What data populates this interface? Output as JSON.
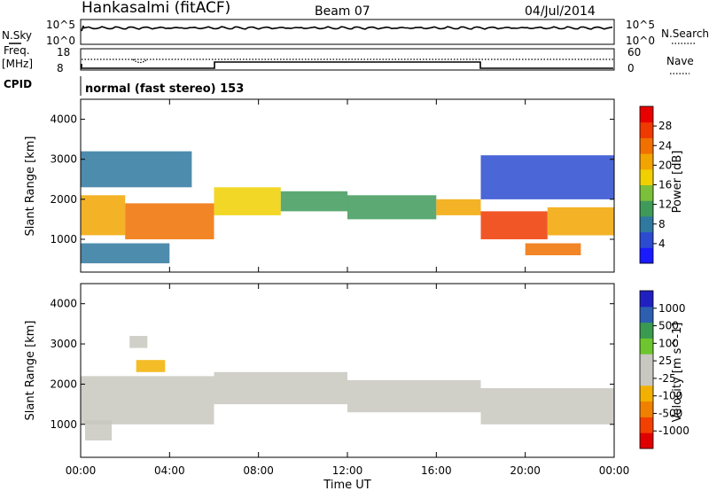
{
  "header": {
    "station": "Hankasalmi (fitACF)",
    "beam": "Beam 07",
    "date": "04/Jul/2014"
  },
  "noise_panel": {
    "left_label": "N.Sky",
    "right_label": "N.Search",
    "left_ticks": [
      "10^5",
      "10^0"
    ],
    "right_ticks": [
      "10^5",
      "10^0"
    ]
  },
  "freq_panel": {
    "left_label": "Freq.",
    "left_unit": "[MHz]",
    "right_label": "Nave",
    "left_ticks": [
      "18",
      "8"
    ],
    "right_ticks": [
      "60",
      "0"
    ]
  },
  "cpid": {
    "label": "CPID",
    "value": "normal (fast stereo) 153"
  },
  "x_axis": {
    "label": "Time UT",
    "ticks": [
      "00:00",
      "04:00",
      "08:00",
      "12:00",
      "16:00",
      "20:00",
      "00:00"
    ]
  },
  "colors": {
    "power_scale": [
      "#1a1aff",
      "#2c4bd0",
      "#2f78a0",
      "#3f9a5a",
      "#7cbf3a",
      "#f0d000",
      "#f2a400",
      "#f07000",
      "#ee3a00",
      "#e80000"
    ],
    "velocity_scale": [
      "#e00000",
      "#f24000",
      "#f08000",
      "#f2b000",
      "#c8c8c0",
      "#c8c8c0",
      "#6dc630",
      "#3a9a50",
      "#2c5fb0",
      "#2020c0"
    ],
    "ground_scatter": "#c8c8c0"
  },
  "chart_data": [
    {
      "type": "heatmap",
      "panel": "power",
      "ylabel": "Slant Range [km]",
      "y_ticks": [
        "4000",
        "3000",
        "2000",
        "1000"
      ],
      "ylim": [
        180,
        4500
      ],
      "xlim_hours": [
        0,
        24
      ],
      "colorbar_label": "Power [dB]",
      "colorbar_ticks": [
        "28",
        "24",
        "20",
        "16",
        "12",
        "8",
        "4"
      ],
      "colorbar_range": [
        0,
        32
      ],
      "bands": [
        {
          "t": [
            0.0,
            2.0
          ],
          "range": [
            1100,
            2100
          ],
          "power": 22
        },
        {
          "t": [
            2.0,
            6.0
          ],
          "range": [
            1000,
            1900
          ],
          "power": 25
        },
        {
          "t": [
            6.0,
            9.0
          ],
          "range": [
            1600,
            2300
          ],
          "power": 18
        },
        {
          "t": [
            9.0,
            12.0
          ],
          "range": [
            1700,
            2200
          ],
          "power": 12
        },
        {
          "t": [
            12.0,
            16.0
          ],
          "range": [
            1500,
            2100
          ],
          "power": 10
        },
        {
          "t": [
            16.0,
            18.0
          ],
          "range": [
            1600,
            2000
          ],
          "power": 20
        },
        {
          "t": [
            18.0,
            21.0
          ],
          "range": [
            1000,
            1700
          ],
          "power": 26
        },
        {
          "t": [
            21.0,
            24.0
          ],
          "range": [
            1100,
            1800
          ],
          "power": 22
        },
        {
          "t": [
            0.0,
            4.0
          ],
          "range": [
            400,
            900
          ],
          "power": 8
        },
        {
          "t": [
            0.0,
            5.0
          ],
          "range": [
            2300,
            3200
          ],
          "power": 8
        },
        {
          "t": [
            18.0,
            24.0
          ],
          "range": [
            2000,
            3100
          ],
          "power": 6
        },
        {
          "t": [
            20.0,
            22.5
          ],
          "range": [
            600,
            900
          ],
          "power": 24
        }
      ]
    },
    {
      "type": "heatmap",
      "panel": "velocity",
      "ylabel": "Slant Range [km]",
      "y_ticks": [
        "4000",
        "3000",
        "2000",
        "1000"
      ],
      "ylim": [
        180,
        4500
      ],
      "xlim_hours": [
        0,
        24
      ],
      "colorbar_label": "Velocity [m s^-1]",
      "colorbar_ticks": [
        "1000",
        "500",
        "100",
        "25",
        "-25",
        "-100",
        "-500",
        "-1000"
      ],
      "colorbar_range": [
        -1000,
        1000
      ],
      "bands": [
        {
          "t": [
            0.0,
            6.0
          ],
          "range": [
            1000,
            2200
          ],
          "velocity": 0
        },
        {
          "t": [
            6.0,
            12.0
          ],
          "range": [
            1500,
            2300
          ],
          "velocity": 0
        },
        {
          "t": [
            12.0,
            18.0
          ],
          "range": [
            1300,
            2100
          ],
          "velocity": 0
        },
        {
          "t": [
            18.0,
            24.0
          ],
          "range": [
            1000,
            1900
          ],
          "velocity": 0
        },
        {
          "t": [
            0.2,
            1.4
          ],
          "range": [
            600,
            1100
          ],
          "velocity": 150
        },
        {
          "t": [
            2.5,
            3.8
          ],
          "range": [
            2300,
            2600
          ],
          "velocity": -300
        },
        {
          "t": [
            2.2,
            3.0
          ],
          "range": [
            2900,
            3200
          ],
          "velocity": 150
        }
      ]
    }
  ]
}
